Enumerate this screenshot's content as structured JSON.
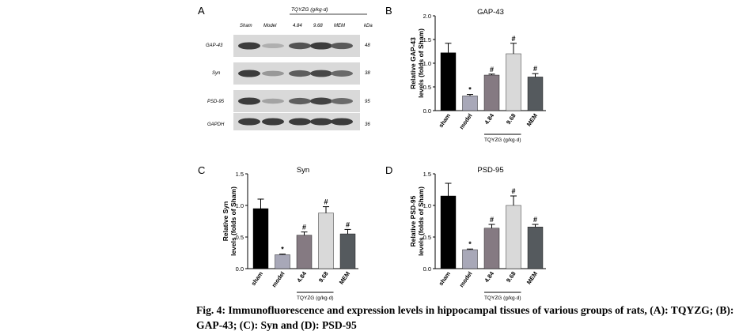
{
  "caption": "Fig. 4: Immunofluorescence and expression levels in hippocampal tissues of various groups of rats, (A): TQYZG; (B): GAP-43; (C): Syn and (D): PSD-95",
  "panel_a": {
    "letter": "A",
    "header_group": "TQYZG  (g/kg·d)",
    "lanes": [
      "Sham",
      "Model",
      "4.84",
      "9.68",
      "MEM"
    ],
    "kda_label": "kDa",
    "rows": [
      {
        "name": "GAP-43",
        "kda": "48",
        "intensity": [
          0.85,
          0.35,
          0.75,
          0.85,
          0.72
        ]
      },
      {
        "name": "Syn",
        "kda": "38",
        "intensity": [
          0.85,
          0.45,
          0.7,
          0.8,
          0.65
        ]
      },
      {
        "name": "PSD-95",
        "kda": "95",
        "intensity": [
          0.85,
          0.4,
          0.7,
          0.82,
          0.65
        ]
      },
      {
        "name": "GAPDH",
        "kda": "36",
        "intensity": [
          0.85,
          0.85,
          0.85,
          0.85,
          0.85
        ]
      }
    ]
  },
  "chart_data": [
    {
      "letter": "B",
      "type": "bar",
      "title": "GAP-43",
      "ylabel": [
        "Relative GAP-43",
        "levels (folds of Sham)"
      ],
      "categories": [
        "sham",
        "model",
        "4.84",
        "9.68",
        "MEM"
      ],
      "values": [
        1.22,
        0.31,
        0.75,
        1.2,
        0.71
      ],
      "errors": [
        0.2,
        0.03,
        0.02,
        0.22,
        0.07
      ],
      "marks": [
        "",
        "*",
        "#",
        "#",
        "#"
      ],
      "ylim": [
        0,
        2
      ],
      "yticks": [
        "0.0",
        "0.5",
        "1.0",
        "1.5",
        "2.0"
      ],
      "group_label": "TQYZG (g/kg·d)",
      "colors": [
        "#000000",
        "#a8a8b8",
        "#857a82",
        "#d9d9d9",
        "#555a5e"
      ]
    },
    {
      "letter": "C",
      "type": "bar",
      "title": "Syn",
      "ylabel": [
        "Relative Syn",
        "levels (folds of Sham)"
      ],
      "categories": [
        "sham",
        "model",
        "4.84",
        "9.68",
        "MEM"
      ],
      "values": [
        0.95,
        0.22,
        0.53,
        0.88,
        0.55
      ],
      "errors": [
        0.15,
        0.01,
        0.05,
        0.1,
        0.07
      ],
      "marks": [
        "",
        "*",
        "#",
        "#",
        "#"
      ],
      "ylim": [
        0,
        1.5
      ],
      "yticks": [
        "0.0",
        "0.5",
        "1.0",
        "1.5"
      ],
      "group_label": "TQYZG (g/kg·d)",
      "colors": [
        "#000000",
        "#a8a8b8",
        "#857a82",
        "#d9d9d9",
        "#555a5e"
      ]
    },
    {
      "letter": "D",
      "type": "bar",
      "title": "PSD-95",
      "ylabel": [
        "Relative PSD-95",
        "levels (folds of Sham)"
      ],
      "categories": [
        "sham",
        "model",
        "4.84",
        "9.68",
        "MEM"
      ],
      "values": [
        1.15,
        0.3,
        0.64,
        1.0,
        0.66
      ],
      "errors": [
        0.2,
        0.01,
        0.06,
        0.15,
        0.04
      ],
      "marks": [
        "",
        "*",
        "#",
        "#",
        "#"
      ],
      "ylim": [
        0,
        1.5
      ],
      "yticks": [
        "0.0",
        "0.5",
        "1.0",
        "1.5"
      ],
      "group_label": "TQYZG (g/kg·d)",
      "colors": [
        "#000000",
        "#a8a8b8",
        "#857a82",
        "#d9d9d9",
        "#555a5e"
      ]
    }
  ]
}
